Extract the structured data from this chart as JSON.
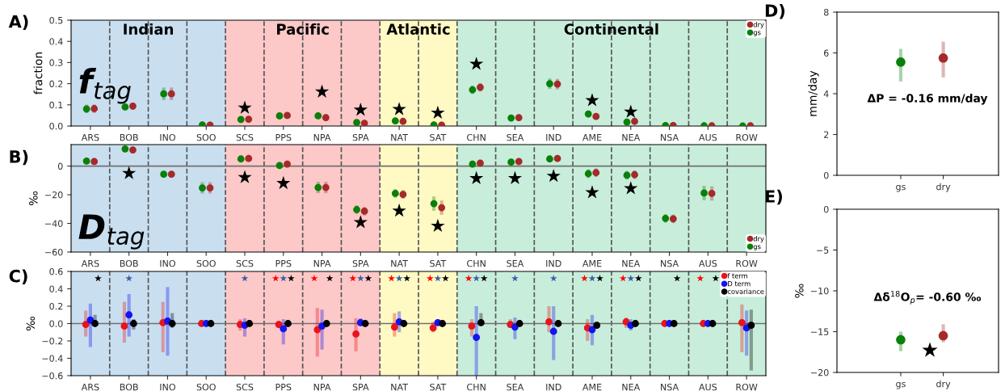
{
  "chart_data": [
    {
      "type": "scatter",
      "ylabel": "fraction",
      "annotations": [
        "A)",
        "f$_{tag}$"
      ],
      "categories": [
        "ARS",
        "BOB",
        "INO",
        "SOO",
        "SCS",
        "PPS",
        "NPA",
        "SPA",
        "NAT",
        "SAT",
        "CHN",
        "SEA",
        "IND",
        "AME",
        "NEA",
        "NSA",
        "AUS",
        "ROW"
      ],
      "ylim": [
        0,
        0.5
      ],
      "yticks": [
        {
          "value": 0,
          "label": "0.0"
        },
        0.1,
        0.2,
        0.3,
        0.4,
        0.5
      ],
      "bands": [
        {
          "axis": "x",
          "from": "ARS",
          "to": "SOO",
          "label": "Indian",
          "color": "#c9dff0"
        },
        {
          "axis": "x",
          "from": "SCS",
          "to": "SPA",
          "label": "Pacific",
          "color": "#fdc8c8"
        },
        {
          "axis": "x",
          "from": "NAT",
          "to": "SAT",
          "label": "Atlantic",
          "color": "#fff9c4"
        },
        {
          "axis": "x",
          "from": "CHN",
          "to": "ROW",
          "label": "Continental",
          "color": "#c8eedb"
        }
      ],
      "legend": "top right",
      "grid": "x",
      "series": [
        {
          "name": "dry",
          "color": "#a52a2a",
          "marker": "circle",
          "values": [
            0.082,
            0.094,
            0.152,
            0.004,
            0.032,
            0.05,
            0.04,
            0.013,
            0.022,
            0.004,
            0.183,
            0.04,
            0.198,
            0.045,
            0.022,
            0.002,
            0.001,
            0.001
          ],
          "errors": [
            0.02,
            0.015,
            0.03,
            null,
            null,
            0.015,
            0.015,
            null,
            null,
            null,
            0.02,
            null,
            0.025,
            null,
            null,
            null,
            null,
            null
          ]
        },
        {
          "name": "gs",
          "color": "#0a800a",
          "marker": "circle",
          "values": [
            0.081,
            0.09,
            0.152,
            0.005,
            0.031,
            0.048,
            0.048,
            0.017,
            0.024,
            0.005,
            0.171,
            0.038,
            0.2,
            0.057,
            0.019,
            0.002,
            0.001,
            0.0
          ],
          "errors": [
            0.02,
            0.015,
            0.03,
            null,
            null,
            0.015,
            0.01,
            null,
            null,
            null,
            0.02,
            null,
            0.025,
            null,
            null,
            null,
            null,
            null
          ]
        },
        {
          "color": "#000000",
          "marker": "star",
          "values": [
            null,
            null,
            null,
            null,
            0.086,
            null,
            0.162,
            0.076,
            0.079,
            0.062,
            0.293,
            null,
            null,
            0.121,
            0.067,
            null,
            null,
            null
          ]
        }
      ]
    },
    {
      "type": "scatter",
      "ylabel": "‰",
      "annotations": [
        "B)",
        "D$_{tag}$"
      ],
      "categories": [
        "ARS",
        "BOB",
        "INO",
        "SOO",
        "SCS",
        "PPS",
        "NPA",
        "SPA",
        "NAT",
        "SAT",
        "CHN",
        "SEA",
        "IND",
        "AME",
        "NEA",
        "NSA",
        "AUS",
        "ROW"
      ],
      "ylim": [
        -60,
        15
      ],
      "yticks": [
        {
          "value": -60,
          "label": "−60"
        },
        {
          "value": -40,
          "label": "−40"
        },
        {
          "value": -20,
          "label": "−20"
        },
        0
      ],
      "bands": [
        {
          "axis": "x",
          "from": "ARS",
          "to": "SOO",
          "color": "#c9dff0"
        },
        {
          "axis": "x",
          "from": "SCS",
          "to": "SPA",
          "color": "#fdc8c8"
        },
        {
          "axis": "x",
          "from": "NAT",
          "to": "SAT",
          "color": "#fff9c4"
        },
        {
          "axis": "x",
          "from": "CHN",
          "to": "ROW",
          "color": "#c8eedb"
        }
      ],
      "ref_lines": [
        {
          "axis": "y",
          "value": 0,
          "line_style": "solid",
          "color": "#707070"
        }
      ],
      "legend": "bottom right",
      "grid": "x",
      "series": [
        {
          "name": "dry",
          "color": "#a52a2a",
          "marker": "circle",
          "values": [
            3.2,
            11.3,
            -5.7,
            -15.2,
            5.3,
            1.4,
            -14.9,
            -31.5,
            -19.8,
            -29,
            2.1,
            3.2,
            5.3,
            -4.6,
            -6,
            -36.8,
            -19.1,
            null
          ],
          "errors": [
            2,
            2,
            2,
            4,
            2,
            2,
            4,
            3,
            3,
            5,
            2,
            2,
            2,
            3,
            3,
            3,
            5,
            null
          ]
        },
        {
          "name": "gs",
          "color": "#0a800a",
          "marker": "circle",
          "values": [
            3.5,
            12,
            -5.7,
            -15.2,
            5,
            0.4,
            -14.9,
            -30.4,
            -19.1,
            -26.2,
            1.4,
            2.8,
            5,
            -5.3,
            -6.4,
            -36.5,
            -18.8,
            null
          ],
          "errors": [
            2,
            2,
            2,
            4,
            2,
            2,
            4,
            3,
            3,
            5,
            2,
            2,
            2,
            3,
            3,
            3,
            5,
            null
          ]
        },
        {
          "color": "#000000",
          "marker": "star",
          "values": [
            null,
            -5,
            null,
            null,
            -7.8,
            -12,
            null,
            -39.3,
            -31.2,
            -41.8,
            -8.5,
            -8.5,
            -7,
            -18.4,
            -15.6,
            null,
            null,
            null
          ]
        }
      ]
    },
    {
      "type": "scatter",
      "ylabel": "‰",
      "annotations": [
        "C)"
      ],
      "categories": [
        "ARS",
        "BOB",
        "INO",
        "SOO",
        "SCS",
        "PPS",
        "NPA",
        "SPA",
        "NAT",
        "SAT",
        "CHN",
        "SEA",
        "IND",
        "AME",
        "NEA",
        "NSA",
        "AUS",
        "ROW"
      ],
      "ylim": [
        -0.6,
        0.6
      ],
      "yticks": [
        {
          "value": -0.6,
          "label": "−0.6"
        },
        {
          "value": -0.4,
          "label": "−0.4"
        },
        {
          "value": -0.2,
          "label": "−0.2"
        },
        {
          "value": 0.0,
          "label": "0.0"
        },
        0.2,
        0.4,
        0.6
      ],
      "bands": [
        {
          "axis": "x",
          "from": "ARS",
          "to": "SOO",
          "color": "#c9dff0"
        },
        {
          "axis": "x",
          "from": "SCS",
          "to": "SPA",
          "color": "#fdc8c8"
        },
        {
          "axis": "x",
          "from": "NAT",
          "to": "SAT",
          "color": "#fff9c4"
        },
        {
          "axis": "x",
          "from": "CHN",
          "to": "ROW",
          "color": "#c8eedb"
        }
      ],
      "ref_lines": [
        {
          "axis": "y",
          "value": 0,
          "line_style": "solid",
          "color": "#707070"
        }
      ],
      "legend": "top right",
      "grid": "x",
      "series": [
        {
          "name": "f term",
          "color": "#e8141e",
          "marker": "circle",
          "values": [
            -0.01,
            -0.03,
            0.01,
            0,
            -0.01,
            -0.01,
            -0.07,
            -0.12,
            -0.04,
            -0.05,
            -0.03,
            -0.01,
            0.02,
            -0.05,
            0.02,
            0,
            0,
            0.01
          ],
          "errors": [
            [
              -0.15,
              0.15
            ],
            [
              -0.22,
              0.25
            ],
            [
              -0.33,
              0.25
            ],
            null,
            [
              -0.08,
              0.05
            ],
            [
              -0.05,
              0.03
            ],
            [
              -0.38,
              0.18
            ],
            [
              -0.32,
              0.06
            ],
            [
              -0.15,
              0.12
            ],
            [
              -0.1,
              0.02
            ],
            [
              -0.15,
              0.05
            ],
            [
              -0.05,
              0.05
            ],
            [
              -0.1,
              0.2
            ],
            [
              -0.2,
              0.05
            ],
            [
              -0.05,
              0.07
            ],
            null,
            null,
            [
              -0.33,
              0.22
            ]
          ]
        },
        {
          "name": "D term",
          "color": "#1414f0",
          "marker": "circle",
          "values": [
            0.04,
            0.1,
            0.03,
            0,
            -0.02,
            -0.06,
            -0.03,
            0.01,
            0.02,
            0.01,
            -0.16,
            -0.04,
            -0.09,
            -0.07,
            -0.02,
            0,
            0,
            -0.05
          ],
          "errors": [
            [
              -0.27,
              0.23
            ],
            [
              -0.15,
              0.34
            ],
            [
              -0.37,
              0.42
            ],
            null,
            [
              -0.15,
              0.06
            ],
            [
              -0.24,
              0.05
            ],
            [
              -0.3,
              0.16
            ],
            [
              -0.03,
              0.06
            ],
            [
              -0.1,
              0.14
            ],
            null,
            [
              -0.6,
              0.2
            ],
            [
              -0.18,
              0.07
            ],
            [
              -0.42,
              0.2
            ],
            [
              -0.25,
              0.1
            ],
            [
              -0.08,
              0.05
            ],
            null,
            null,
            [
              -0.37,
              0.15
            ]
          ]
        },
        {
          "name": "covariance",
          "color": "#000000",
          "marker": "circle",
          "values": [
            0,
            0,
            0,
            0,
            0,
            0,
            0,
            0,
            0,
            0,
            0.01,
            0,
            0,
            -0.02,
            0,
            0,
            0,
            -0.02
          ],
          "errors": [
            [
              -0.03,
              0.1
            ],
            [
              -0.07,
              0.05
            ],
            [
              -0.05,
              0.12
            ],
            null,
            null,
            null,
            null,
            null,
            null,
            null,
            [
              -0.02,
              0.12
            ],
            null,
            null,
            null,
            null,
            null,
            null,
            [
              -0.54,
              0.16
            ]
          ]
        },
        {
          "color": "#ff0000",
          "marker": "star",
          "values": [
            null,
            null,
            null,
            null,
            null,
            0.52,
            0.52,
            0.52,
            0.52,
            0.52,
            0.52,
            null,
            null,
            0.52,
            0.52,
            null,
            0.52,
            null
          ]
        },
        {
          "color": "#3b5ea8",
          "marker": "star",
          "values": [
            null,
            0.52,
            null,
            null,
            0.52,
            0.52,
            null,
            0.52,
            0.52,
            0.52,
            0.52,
            0.52,
            0.52,
            0.52,
            0.52,
            null,
            null,
            null
          ]
        },
        {
          "color": "#000000",
          "marker": "star",
          "values": [
            0.52,
            null,
            null,
            null,
            null,
            0.52,
            0.52,
            0.52,
            0.52,
            0.52,
            0.52,
            null,
            null,
            0.52,
            0.52,
            0.52,
            0.52,
            null
          ]
        }
      ]
    },
    {
      "type": "scatter",
      "ylabel": "mm/day",
      "annotations": [
        "D)",
        "ΔP = -0.16 mm/day"
      ],
      "categories": [
        "gs",
        "dry"
      ],
      "ylim": [
        0,
        8
      ],
      "yticks": [
        0,
        2,
        4,
        6,
        8
      ],
      "grid": false,
      "series": [
        {
          "colors": [
            "#0a800a",
            "#a52a2a"
          ],
          "marker": "circle",
          "values": [
            5.55,
            5.75
          ],
          "errors": [
            [
              4.6,
              6.2
            ],
            [
              4.8,
              6.55
            ]
          ]
        }
      ]
    },
    {
      "type": "scatter",
      "ylabel": "‰",
      "annotations": [
        "E)",
        "Δδ$^{18}$O$_{p}$= -0.60 ‰",
        "★"
      ],
      "categories": [
        "gs",
        "dry"
      ],
      "ylim": [
        -20,
        0
      ],
      "yticks": [
        {
          "value": -20,
          "label": "−20"
        },
        {
          "value": -15,
          "label": "−15"
        },
        {
          "value": -10,
          "label": "−10"
        },
        {
          "value": -5,
          "label": "−5"
        },
        0
      ],
      "grid": false,
      "series": [
        {
          "colors": [
            "#0a800a",
            "#a52a2a"
          ],
          "marker": "circle",
          "values": [
            -16.0,
            -15.5
          ],
          "errors": [
            [
              -17.4,
              -15.0
            ],
            [
              -16.3,
              -14.1
            ]
          ]
        }
      ]
    }
  ]
}
